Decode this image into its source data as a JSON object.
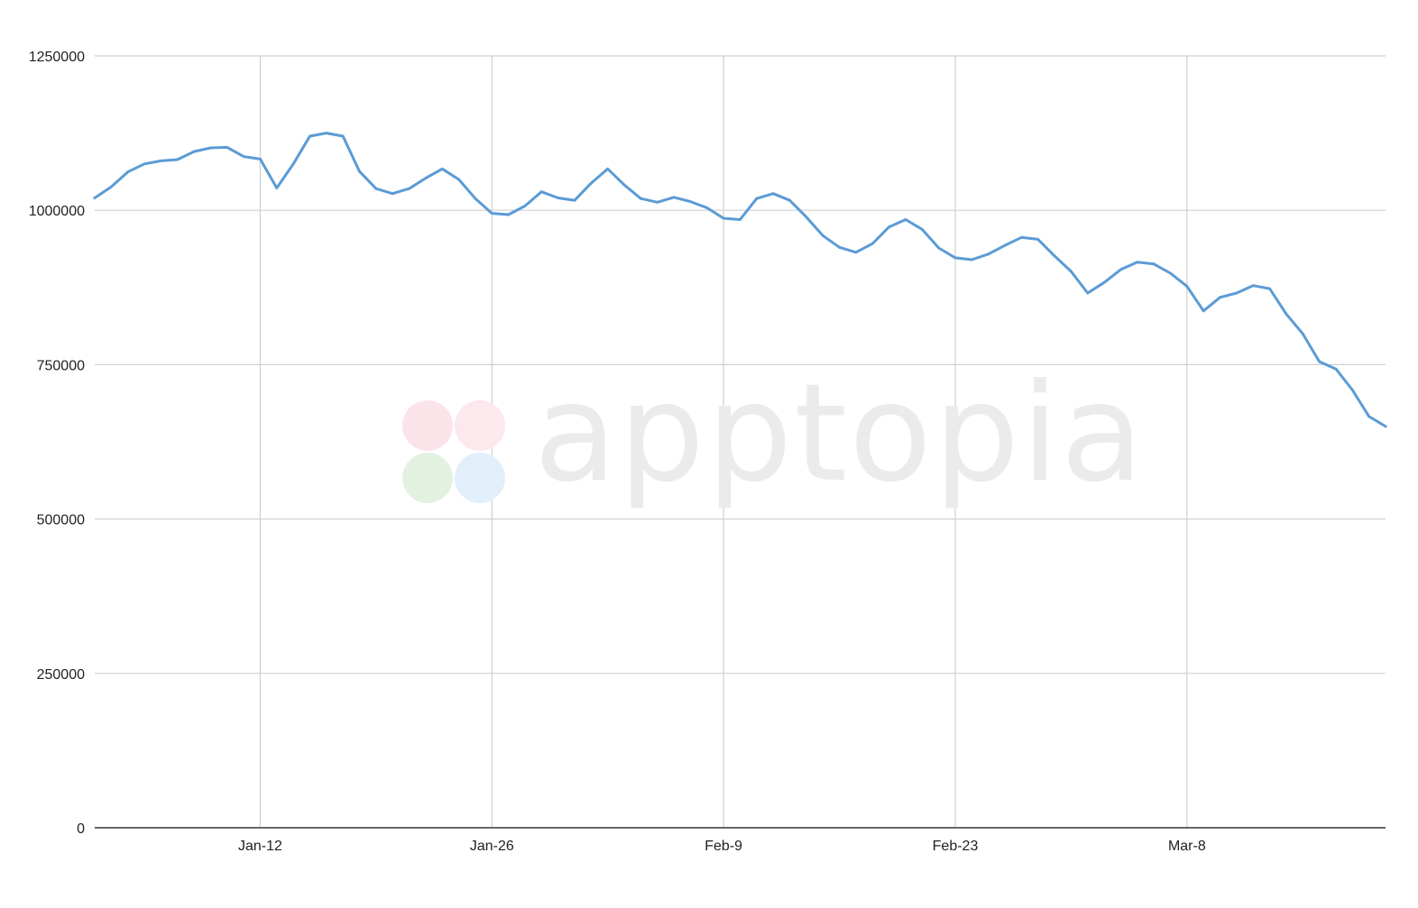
{
  "colors": {
    "line": "#5b9bd5",
    "grid": "#d0d0d0",
    "axis": "#333333",
    "watermark_text": "#ebebeb",
    "watermark_petals": [
      "#fbe3ea",
      "#fde8ee",
      "#e3f1e1",
      "#e2effb"
    ]
  },
  "watermark": {
    "text": "apptopia",
    "icon": "clover-logo-icon"
  },
  "chart_data": {
    "type": "line",
    "title": "",
    "xlabel": "",
    "ylabel": "",
    "grid": true,
    "legend": "none",
    "ylim": [
      0,
      1250000
    ],
    "xlim": [
      "2020-01-02",
      "2020-03-20"
    ],
    "yticks": [
      0,
      250000,
      500000,
      750000,
      1000000,
      1250000
    ],
    "ytick_labels": [
      "0",
      "250000",
      "500000",
      "750000",
      "1000000",
      "1250000"
    ],
    "xticks": [
      "2020-01-12",
      "2020-01-26",
      "2020-02-09",
      "2020-02-23",
      "2020-03-08"
    ],
    "xtick_labels": [
      "Jan-12",
      "Jan-26",
      "Feb-9",
      "Feb-23",
      "Mar-8"
    ],
    "series": [
      {
        "x": [
          "2020-01-02",
          "2020-01-03",
          "2020-01-04",
          "2020-01-05",
          "2020-01-06",
          "2020-01-07",
          "2020-01-08",
          "2020-01-09",
          "2020-01-10",
          "2020-01-11",
          "2020-01-12",
          "2020-01-13",
          "2020-01-14",
          "2020-01-15",
          "2020-01-16",
          "2020-01-17",
          "2020-01-18",
          "2020-01-19",
          "2020-01-20",
          "2020-01-21",
          "2020-01-22",
          "2020-01-23",
          "2020-01-24",
          "2020-01-25",
          "2020-01-26",
          "2020-01-27",
          "2020-01-28",
          "2020-01-29",
          "2020-01-30",
          "2020-01-31",
          "2020-02-01",
          "2020-02-02",
          "2020-02-03",
          "2020-02-04",
          "2020-02-05",
          "2020-02-06",
          "2020-02-07",
          "2020-02-08",
          "2020-02-09",
          "2020-02-10",
          "2020-02-11",
          "2020-02-12",
          "2020-02-13",
          "2020-02-14",
          "2020-02-15",
          "2020-02-16",
          "2020-02-17",
          "2020-02-18",
          "2020-02-19",
          "2020-02-20",
          "2020-02-21",
          "2020-02-22",
          "2020-02-23",
          "2020-02-24",
          "2020-02-25",
          "2020-02-26",
          "2020-02-27",
          "2020-02-28",
          "2020-02-29",
          "2020-03-01",
          "2020-03-02",
          "2020-03-03",
          "2020-03-04",
          "2020-03-05",
          "2020-03-06",
          "2020-03-07",
          "2020-03-08",
          "2020-03-09",
          "2020-03-10",
          "2020-03-11",
          "2020-03-12",
          "2020-03-13",
          "2020-03-14",
          "2020-03-15",
          "2020-03-16",
          "2020-03-17",
          "2020-03-18",
          "2020-03-19",
          "2020-03-20"
        ],
        "values": [
          1020000,
          1038000,
          1062000,
          1075000,
          1080000,
          1082000,
          1095000,
          1101000,
          1102000,
          1087000,
          1083000,
          1036000,
          1075000,
          1120000,
          1125000,
          1120000,
          1063000,
          1035000,
          1027000,
          1035000,
          1052000,
          1067000,
          1050000,
          1019000,
          995000,
          993000,
          1007000,
          1030000,
          1020000,
          1016000,
          1044000,
          1067000,
          1041000,
          1019000,
          1013000,
          1021000,
          1014000,
          1004000,
          987000,
          985000,
          1019000,
          1027000,
          1016000,
          989000,
          959000,
          940000,
          932000,
          946000,
          973000,
          985000,
          969000,
          939000,
          923000,
          920000,
          929000,
          943000,
          956000,
          953000,
          926000,
          901000,
          866000,
          883000,
          904000,
          916000,
          913000,
          898000,
          877000,
          837000,
          859000,
          866000,
          878000,
          873000,
          832000,
          800000,
          755000,
          743000,
          709000,
          666000,
          650000
        ]
      }
    ]
  }
}
